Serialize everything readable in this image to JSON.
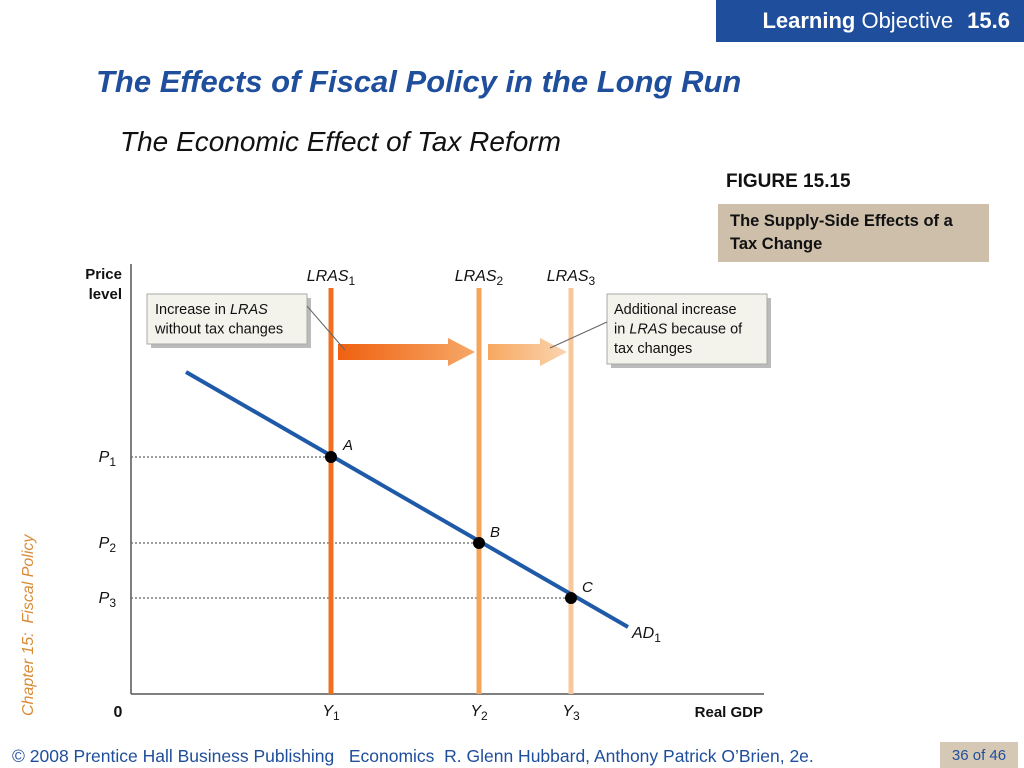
{
  "badge": {
    "learning": "Learning",
    "objective": " Objective",
    "number": "15.6"
  },
  "title": "The Effects of Fiscal Policy in the Long Run",
  "subtitle": "The Economic Effect of Tax Reform",
  "figure": {
    "label": "FIGURE 15.15",
    "caption": "The Supply-Side Effects of a Tax Change"
  },
  "side_label": "Chapter 15:  Fiscal Policy",
  "footer": {
    "copyright": "© 2008 Prentice Hall Business Publishing   Economics  R. Glenn Hubbard, Anthony Patrick O’Brien, 2e.",
    "page": "36 of 46"
  },
  "colors": {
    "brand_blue": "#1f4e9c",
    "ad_line": "#1f5aa8",
    "lras1": "#f07020",
    "lras2": "#f5a55a",
    "lras3": "#f8c79a",
    "caption_bg": "#cdbfaa",
    "side_label": "#d98a35"
  },
  "chart_data": {
    "type": "line",
    "yaxis_label": "Price level",
    "xaxis_label": "Real GDP",
    "origin_label": "0",
    "x_ticks": [
      {
        "base": "Y",
        "sub": "1"
      },
      {
        "base": "Y",
        "sub": "2"
      },
      {
        "base": "Y",
        "sub": "3"
      }
    ],
    "y_ticks": [
      {
        "base": "P",
        "sub": "1"
      },
      {
        "base": "P",
        "sub": "2"
      },
      {
        "base": "P",
        "sub": "3"
      }
    ],
    "vertical_lines": [
      {
        "base": "LRAS",
        "sub": "1",
        "at": "Y1"
      },
      {
        "base": "LRAS",
        "sub": "2",
        "at": "Y2"
      },
      {
        "base": "LRAS",
        "sub": "3",
        "at": "Y3"
      }
    ],
    "demand_curve": {
      "base": "AD",
      "sub": "1"
    },
    "points": [
      {
        "label": "A",
        "x": "Y1",
        "y": "P1"
      },
      {
        "label": "B",
        "x": "Y2",
        "y": "P2"
      },
      {
        "label": "C",
        "x": "Y3",
        "y": "P3"
      }
    ],
    "annotations": [
      {
        "lines": [
          [
            {
              "t": "Increase in "
            },
            {
              "t": "LRAS",
              "i": true
            }
          ],
          [
            {
              "t": "without tax changes"
            }
          ]
        ]
      },
      {
        "lines": [
          [
            {
              "t": "Additional increase"
            }
          ],
          [
            {
              "t": "in "
            },
            {
              "t": "LRAS",
              "i": true
            },
            {
              "t": " because of"
            }
          ],
          [
            {
              "t": "tax changes"
            }
          ]
        ]
      }
    ]
  }
}
